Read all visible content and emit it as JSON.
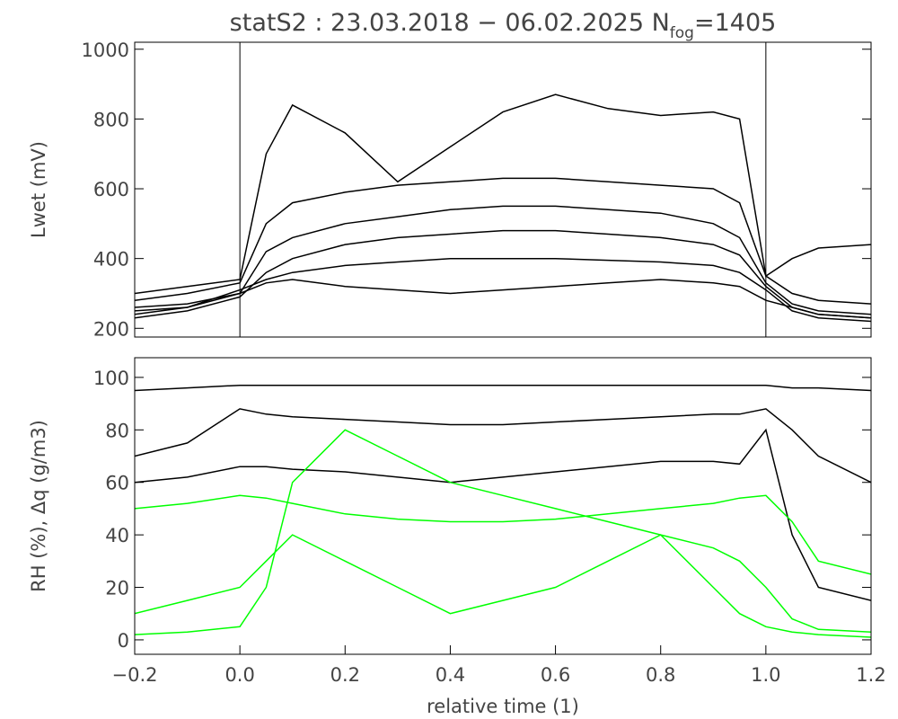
{
  "chart_data": [
    {
      "type": "line",
      "title": "statS2 : 23.03.2018 − 06.02.2025 N",
      "title_subscript": "fog",
      "title_suffix": "=1405",
      "ylabel": "Lwet (mV)",
      "x": [
        -0.2,
        -0.1,
        0,
        0.05,
        0.1,
        0.2,
        0.3,
        0.4,
        0.5,
        0.6,
        0.7,
        0.8,
        0.9,
        0.95,
        1.0,
        1.05,
        1.1,
        1.2
      ],
      "xlim": [
        -0.2,
        1.2
      ],
      "ylim": [
        175,
        1020
      ],
      "yticks": [
        200,
        400,
        600,
        800,
        1000
      ],
      "vlines": [
        0,
        1
      ],
      "series": [
        {
          "color": "#000000",
          "values": [
            250,
            260,
            300,
            420,
            460,
            500,
            520,
            540,
            550,
            550,
            540,
            530,
            500,
            460,
            330,
            270,
            250,
            240
          ]
        },
        {
          "color": "#000000",
          "values": [
            230,
            250,
            290,
            360,
            400,
            440,
            460,
            470,
            480,
            480,
            470,
            460,
            440,
            410,
            320,
            260,
            240,
            230
          ]
        },
        {
          "color": "#000000",
          "values": [
            280,
            300,
            330,
            500,
            560,
            590,
            610,
            620,
            630,
            630,
            620,
            610,
            600,
            560,
            350,
            300,
            280,
            270
          ]
        },
        {
          "color": "#000000",
          "values": [
            240,
            260,
            310,
            340,
            360,
            380,
            390,
            400,
            400,
            400,
            395,
            390,
            380,
            360,
            310,
            250,
            230,
            220
          ]
        },
        {
          "color": "#000000",
          "values": [
            300,
            320,
            340,
            700,
            840,
            760,
            620,
            720,
            820,
            870,
            830,
            810,
            820,
            800,
            350,
            400,
            430,
            440
          ]
        },
        {
          "color": "#000000",
          "values": [
            260,
            270,
            300,
            330,
            340,
            320,
            310,
            300,
            310,
            320,
            330,
            340,
            330,
            320,
            280,
            260,
            240,
            230
          ]
        }
      ]
    },
    {
      "type": "line",
      "ylabel": "RH (%), Δq (g/m3)",
      "xlabel": "relative time (1)",
      "x": [
        -0.2,
        -0.1,
        0,
        0.05,
        0.1,
        0.2,
        0.3,
        0.4,
        0.5,
        0.6,
        0.7,
        0.8,
        0.9,
        0.95,
        1.0,
        1.05,
        1.1,
        1.2
      ],
      "xlim": [
        -0.2,
        1.2
      ],
      "ylim": [
        -5.5,
        107.5
      ],
      "xticks": [
        {
          "value": -0.2,
          "label": "−0.2"
        },
        {
          "value": 0,
          "label": "0.0"
        },
        0.2,
        0.4,
        0.6,
        0.8,
        {
          "value": 1,
          "label": "1.0"
        },
        1.2
      ],
      "yticks": [
        0,
        20,
        40,
        60,
        80,
        100
      ],
      "series": [
        {
          "color": "#000000",
          "values": [
            95,
            96,
            97,
            97,
            97,
            97,
            97,
            97,
            97,
            97,
            97,
            97,
            97,
            97,
            97,
            96,
            96,
            95
          ]
        },
        {
          "color": "#000000",
          "values": [
            70,
            75,
            88,
            86,
            85,
            84,
            83,
            82,
            82,
            83,
            84,
            85,
            86,
            86,
            88,
            80,
            70,
            60
          ]
        },
        {
          "color": "#000000",
          "values": [
            60,
            62,
            66,
            66,
            65,
            64,
            62,
            60,
            62,
            64,
            66,
            68,
            68,
            67,
            80,
            40,
            20,
            15
          ]
        },
        {
          "color": "#00ff00",
          "values": [
            50,
            52,
            55,
            54,
            52,
            48,
            46,
            45,
            45,
            46,
            48,
            50,
            52,
            54,
            55,
            45,
            30,
            25
          ]
        },
        {
          "color": "#00ff00",
          "values": [
            10,
            15,
            20,
            30,
            40,
            30,
            20,
            10,
            15,
            20,
            30,
            40,
            20,
            10,
            5,
            3,
            2,
            1
          ]
        },
        {
          "color": "#00ff00",
          "values": [
            2,
            3,
            5,
            20,
            60,
            80,
            70,
            60,
            55,
            50,
            45,
            40,
            35,
            30,
            20,
            8,
            4,
            3
          ]
        }
      ]
    }
  ]
}
